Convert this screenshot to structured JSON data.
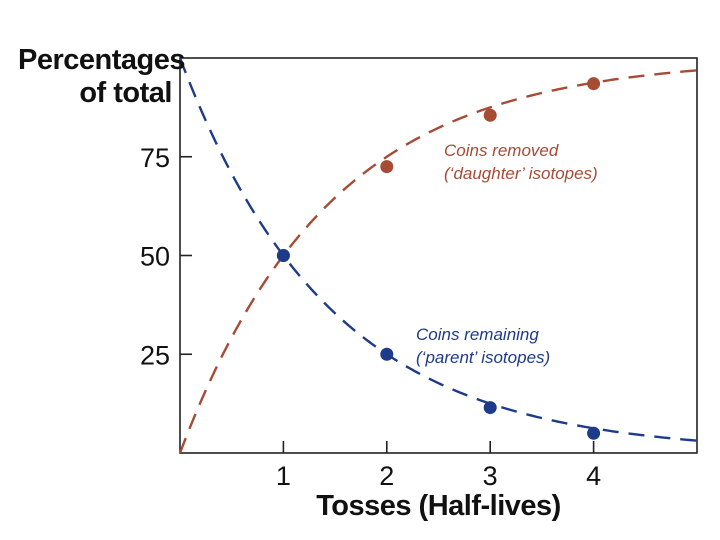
{
  "chart_data": {
    "type": "line",
    "title": "",
    "ylabel_lines": [
      "Percentages",
      "of total"
    ],
    "xlabel": "Tosses (Half-lives)",
    "x_ticks": [
      1,
      2,
      3,
      4
    ],
    "y_ticks": [
      25,
      50,
      75
    ],
    "xlim": [
      0,
      5
    ],
    "ylim": [
      0,
      100
    ],
    "grid": false,
    "series": [
      {
        "name_lines": [
          "Coins removed",
          "(‘daughter’ isotopes)"
        ],
        "color": "#a64b34",
        "x": [
          1,
          2,
          3,
          4
        ],
        "y": [
          50,
          72.5,
          85.5,
          93.5
        ],
        "curve": "100*(1-2^(-x))"
      },
      {
        "name_lines": [
          "Coins remaining",
          "(‘parent’ isotopes)"
        ],
        "color": "#1e3a8a",
        "x": [
          1,
          2,
          3,
          4
        ],
        "y": [
          50,
          25,
          11.5,
          5
        ],
        "curve": "100*2^(-x)"
      }
    ]
  }
}
